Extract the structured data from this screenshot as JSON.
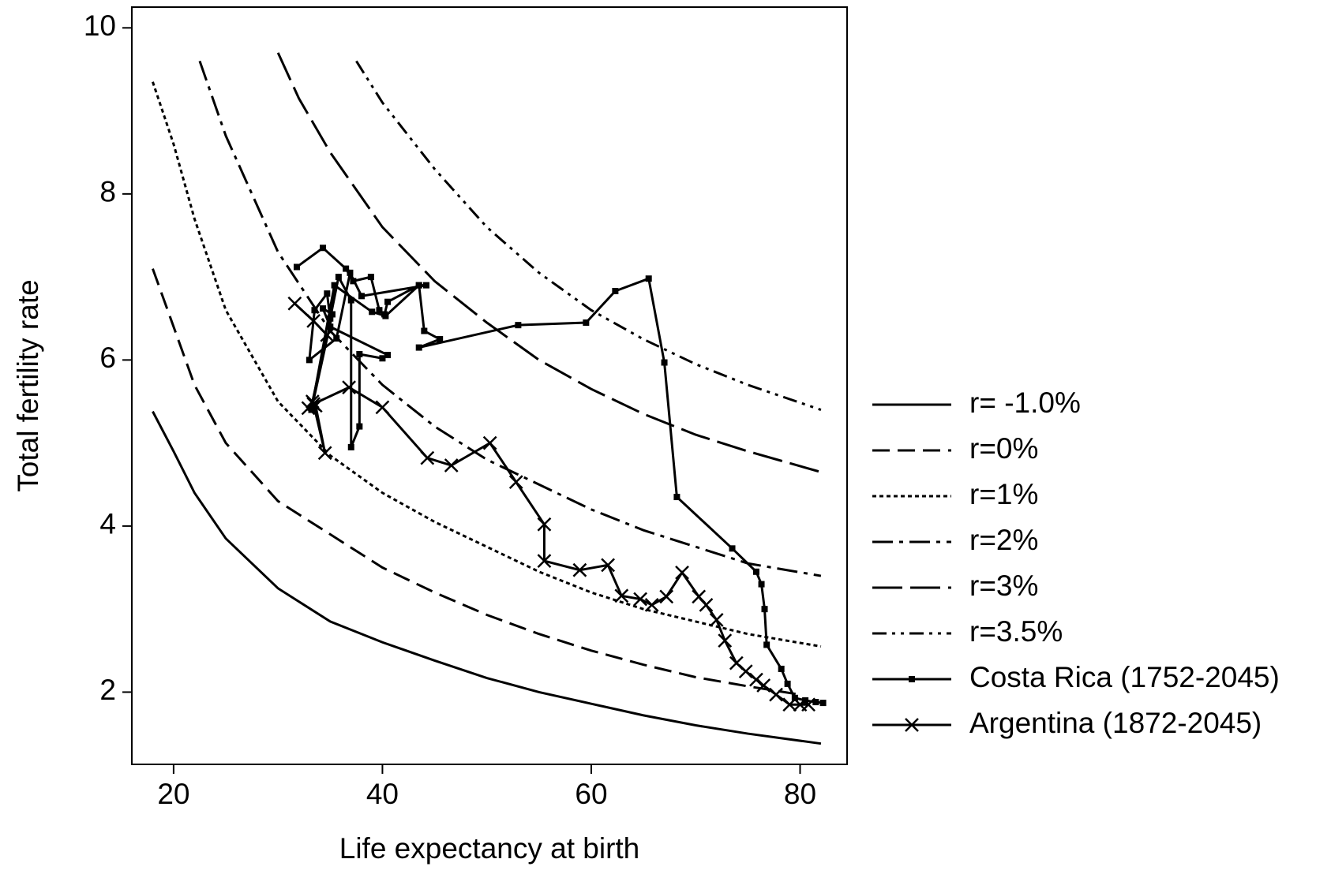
{
  "chart_data": {
    "type": "line",
    "xlabel": "Life expectancy at birth",
    "ylabel": "Total fertility rate",
    "xlim": [
      16,
      84.5
    ],
    "ylim": [
      1.13,
      10.25
    ],
    "xticks": [
      20,
      40,
      60,
      80
    ],
    "yticks": [
      2,
      4,
      6,
      8,
      10
    ],
    "legend": "right",
    "series": [
      {
        "name": "r= -1.0%",
        "color": "#000000",
        "linestyle": "solid",
        "marker": "none",
        "x": [
          18,
          20,
          22,
          25,
          30,
          35,
          40,
          45,
          50,
          55,
          60,
          65,
          70,
          75,
          82
        ],
        "values": [
          5.38,
          4.9,
          4.4,
          3.85,
          3.25,
          2.85,
          2.6,
          2.38,
          2.17,
          2.0,
          1.86,
          1.72,
          1.6,
          1.5,
          1.38
        ]
      },
      {
        "name": "r=0%",
        "color": "#000000",
        "linestyle": "dashed",
        "marker": "none",
        "x": [
          18,
          20,
          22,
          25,
          30,
          35,
          40,
          45,
          50,
          55,
          60,
          65,
          70,
          75,
          80
        ],
        "values": [
          7.1,
          6.4,
          5.7,
          5.0,
          4.3,
          3.9,
          3.5,
          3.2,
          2.93,
          2.7,
          2.5,
          2.33,
          2.18,
          2.07,
          1.97
        ]
      },
      {
        "name": "r=1%",
        "color": "#000000",
        "linestyle": "dotted",
        "marker": "none",
        "x": [
          18,
          20,
          22,
          25,
          30,
          35,
          40,
          45,
          50,
          55,
          60,
          65,
          70,
          75,
          82
        ],
        "values": [
          9.35,
          8.6,
          7.7,
          6.6,
          5.5,
          4.85,
          4.4,
          4.05,
          3.75,
          3.45,
          3.2,
          3.0,
          2.85,
          2.7,
          2.55
        ]
      },
      {
        "name": "r=2%",
        "color": "#000000",
        "linestyle": "dashdot",
        "marker": "none",
        "x": [
          22.5,
          25,
          30,
          35,
          40,
          45,
          50,
          55,
          60,
          65,
          70,
          75,
          82
        ],
        "values": [
          9.6,
          8.7,
          7.3,
          6.35,
          5.7,
          5.2,
          4.8,
          4.5,
          4.2,
          3.95,
          3.75,
          3.55,
          3.4
        ]
      },
      {
        "name": "r=3%",
        "color": "#000000",
        "linestyle": "longdash",
        "marker": "none",
        "x": [
          30,
          32,
          35,
          40,
          45,
          50,
          55,
          60,
          65,
          70,
          75,
          82
        ],
        "values": [
          9.7,
          9.15,
          8.5,
          7.6,
          6.95,
          6.45,
          6.0,
          5.65,
          5.35,
          5.1,
          4.9,
          4.65
        ]
      },
      {
        "name": "r=3.5%",
        "color": "#000000",
        "linestyle": "dashdotdot",
        "marker": "none",
        "x": [
          37.5,
          40,
          45,
          50,
          55,
          60,
          65,
          70,
          75,
          82
        ],
        "values": [
          9.6,
          9.1,
          8.3,
          7.6,
          7.05,
          6.6,
          6.25,
          5.95,
          5.7,
          5.4
        ]
      },
      {
        "name": "Costa Rica (1752-2045)",
        "color": "#000000",
        "linestyle": "solid",
        "marker": "square",
        "x": [
          31.8,
          34.3,
          36.5,
          37.2,
          38.9,
          39.7,
          40.2,
          40.5,
          43.5,
          44.2,
          38.0,
          36.9,
          35.6,
          33.0,
          33.5,
          34.7,
          35.0,
          35.8,
          37.0,
          37.0,
          37.8,
          37.8,
          40.0,
          40.5,
          35.0,
          34.3,
          35.2,
          33.2,
          35.4,
          39.0,
          40.3,
          43.5,
          44.0,
          45.5,
          43.5,
          53.0,
          59.5,
          62.3,
          65.5,
          67.0,
          68.2,
          73.5,
          75.8,
          76.3,
          76.6,
          76.8,
          78.2,
          78.8,
          79.5,
          80.5,
          81.5,
          82.2
        ],
        "values": [
          7.12,
          7.35,
          7.1,
          6.95,
          7.0,
          6.6,
          6.55,
          6.7,
          6.9,
          6.9,
          6.77,
          7.05,
          6.26,
          6.0,
          6.6,
          6.8,
          6.5,
          7.0,
          6.72,
          4.95,
          5.2,
          6.07,
          6.02,
          6.06,
          6.4,
          6.62,
          6.55,
          5.4,
          6.9,
          6.58,
          6.53,
          6.9,
          6.35,
          6.25,
          6.15,
          6.42,
          6.45,
          6.83,
          6.98,
          5.97,
          4.35,
          3.73,
          3.45,
          3.3,
          3.0,
          2.57,
          2.28,
          2.1,
          1.93,
          1.9,
          1.88,
          1.87
        ]
      },
      {
        "name": "Argentina (1872-2045)",
        "color": "#000000",
        "linestyle": "solid",
        "marker": "cross",
        "x": [
          31.6,
          33.4,
          34.7,
          33.3,
          32.9,
          33.6,
          34.5,
          33.4,
          36.8,
          40.0,
          44.3,
          46.6,
          50.3,
          52.8,
          55.5,
          55.5,
          58.9,
          61.6,
          62.9,
          64.7,
          65.8,
          67.2,
          68.7,
          70.3,
          71.0,
          72.0,
          72.8,
          73.9,
          74.8,
          75.8,
          76.5,
          77.7,
          79.0,
          80.0,
          80.8
        ],
        "values": [
          6.68,
          6.47,
          6.3,
          5.5,
          5.42,
          5.45,
          4.88,
          5.47,
          5.67,
          5.43,
          4.82,
          4.73,
          5.0,
          4.53,
          4.02,
          3.58,
          3.47,
          3.53,
          3.16,
          3.12,
          3.05,
          3.15,
          3.44,
          3.15,
          3.05,
          2.87,
          2.62,
          2.35,
          2.25,
          2.15,
          2.08,
          1.97,
          1.85,
          1.85,
          1.85
        ]
      }
    ]
  }
}
